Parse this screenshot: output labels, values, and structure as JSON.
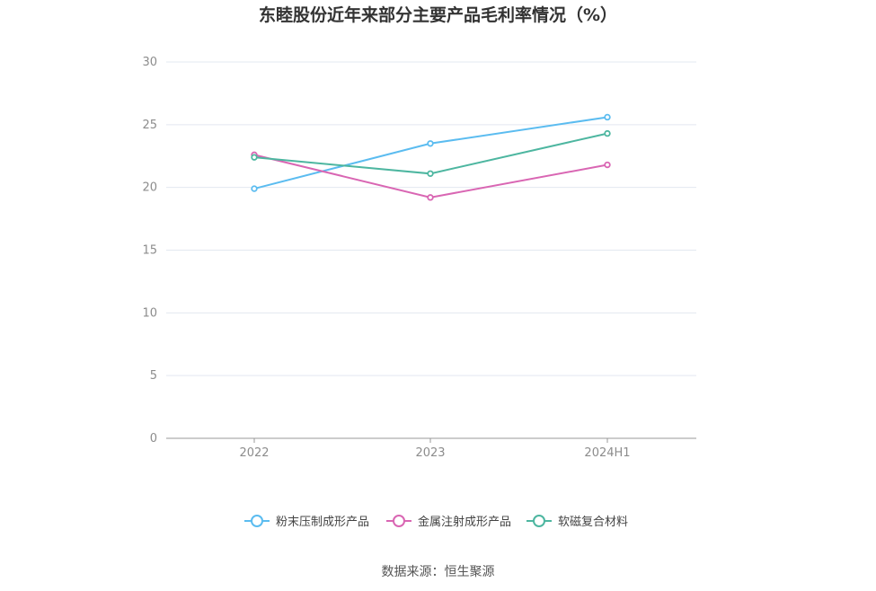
{
  "chart_data": {
    "type": "line",
    "title": "东睦股份近年来部分主要产品毛利率情况（%）",
    "categories": [
      "2022",
      "2023",
      "2024H1"
    ],
    "ylim": [
      0,
      30
    ],
    "yticks": [
      0,
      5,
      10,
      15,
      20,
      25,
      30
    ],
    "grid": true,
    "legend_position": "bottom",
    "series": [
      {
        "name": "粉末压制成形产品",
        "color": "#5bbcf0",
        "values": [
          19.9,
          23.5,
          25.6
        ]
      },
      {
        "name": "金属注射成形产品",
        "color": "#d966b3",
        "values": [
          22.6,
          19.2,
          21.8
        ]
      },
      {
        "name": "软磁复合材料",
        "color": "#4db6a0",
        "values": [
          22.4,
          21.1,
          24.3
        ]
      }
    ]
  },
  "source": "数据来源：恒生聚源"
}
